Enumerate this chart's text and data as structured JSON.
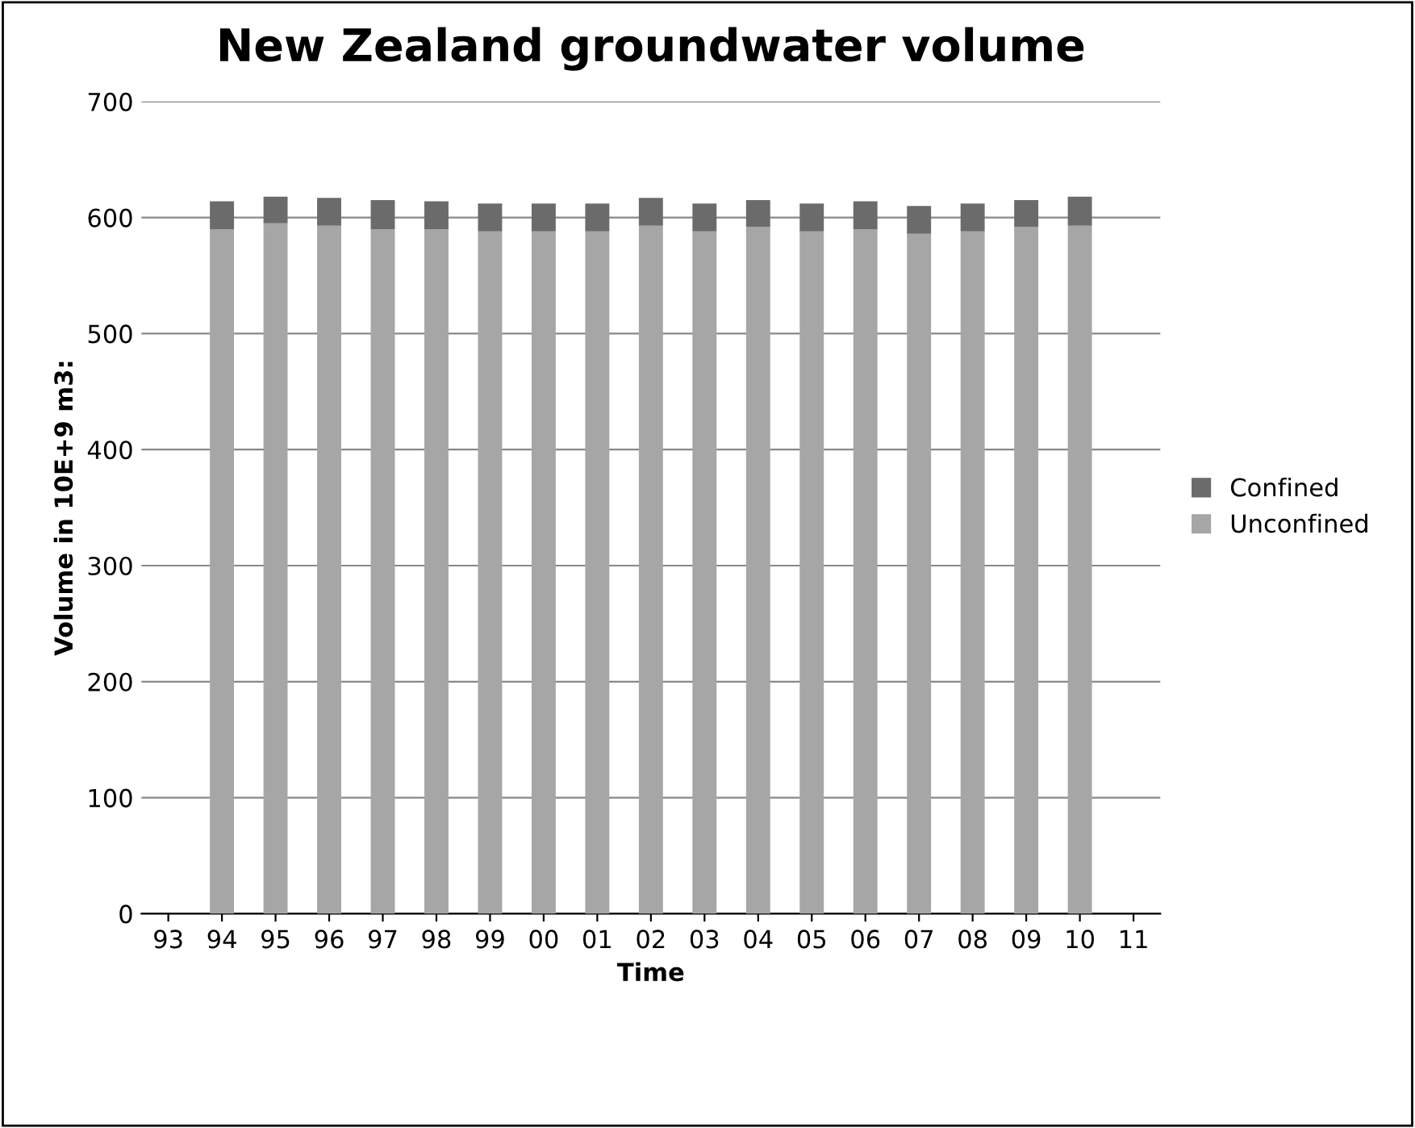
{
  "chart_data": {
    "type": "bar",
    "title": "New Zealand groundwater volume",
    "xlabel": "Time",
    "ylabel": "Volume in 10E+9 m3:",
    "categories": [
      "93",
      "94",
      "95",
      "96",
      "97",
      "98",
      "99",
      "00",
      "01",
      "02",
      "03",
      "04",
      "05",
      "06",
      "07",
      "08",
      "09",
      "10",
      "11"
    ],
    "stacked": true,
    "series": [
      {
        "name": "Unconfined",
        "color": "#a6a6a6",
        "values": [
          null,
          590,
          595,
          593,
          590,
          590,
          588,
          588,
          588,
          593,
          588,
          592,
          588,
          590,
          586,
          588,
          592,
          593,
          null
        ]
      },
      {
        "name": "Confined",
        "color": "#6b6b6b",
        "values": [
          null,
          24,
          23,
          24,
          25,
          24,
          24,
          24,
          24,
          24,
          24,
          23,
          24,
          24,
          24,
          24,
          23,
          25,
          null
        ]
      }
    ],
    "ylim": [
      0,
      700
    ],
    "yticks": [
      0,
      100,
      200,
      300,
      400,
      500,
      600,
      700
    ],
    "grid": "y",
    "legend": "right"
  }
}
